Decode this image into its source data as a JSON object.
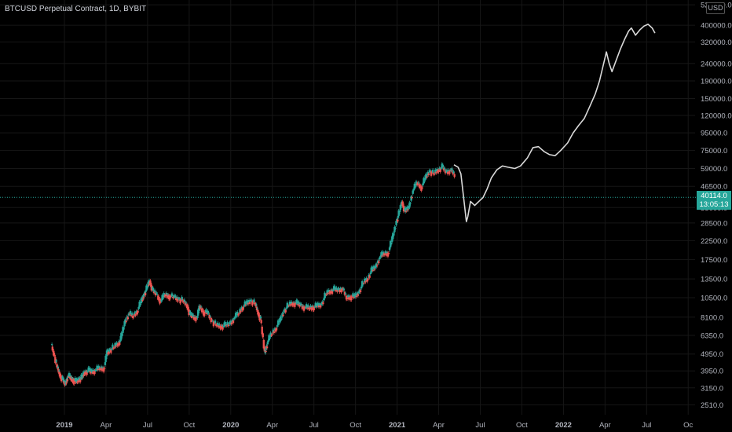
{
  "title": "BTCUSD Perpetual Contract, 1D, BYBIT",
  "currency_badge": "USD",
  "last_price": "40114.0",
  "countdown": "13:05:13",
  "colors": {
    "up": "#26a69a",
    "down": "#ef5350",
    "projection": "#d9d9d9",
    "badge": "#26a69a",
    "axis_text": "#b2b5be"
  },
  "chart_data": {
    "type": "line",
    "yscale": "log",
    "title": "BTCUSD Perpetual Contract, 1D, BYBIT",
    "ylim": [
      2200,
      560000
    ],
    "y_ticks": [
      "525000.0",
      "400000.0",
      "320000.0",
      "240000.0",
      "190000.0",
      "150000.0",
      "120000.0",
      "95000.0",
      "75000.0",
      "59000.0",
      "46500.0",
      "35000.0",
      "28500.0",
      "22500.0",
      "17500.0",
      "13500.0",
      "10500.0",
      "8100.0",
      "6350.0",
      "4950.0",
      "3950.0",
      "3150.0",
      "2510.0"
    ],
    "x_ticks": [
      "2019",
      "Apr",
      "Jul",
      "Oct",
      "2020",
      "Apr",
      "Jul",
      "Oct",
      "2021",
      "Apr",
      "Jul",
      "Oct",
      "2022",
      "Apr",
      "Jul",
      "Oc"
    ],
    "x_tick_months": [
      0,
      3,
      6,
      9,
      12,
      15,
      18,
      21,
      24,
      27,
      30,
      33,
      36,
      39,
      42,
      45
    ],
    "x_start_month": -1.2,
    "series": [
      {
        "style": "candles",
        "points": [
          [
            -0.9,
            5600
          ],
          [
            -0.7,
            4900
          ],
          [
            -0.5,
            4200
          ],
          [
            -0.3,
            3800
          ],
          [
            -0.1,
            3500
          ],
          [
            0.1,
            3300
          ],
          [
            0.3,
            3700
          ],
          [
            0.5,
            3600
          ],
          [
            0.7,
            3500
          ],
          [
            0.9,
            3400
          ],
          [
            1.1,
            3550
          ],
          [
            1.3,
            3600
          ],
          [
            1.5,
            3900
          ],
          [
            1.8,
            3950
          ],
          [
            2.0,
            3900
          ],
          [
            2.3,
            4000
          ],
          [
            2.6,
            4100
          ],
          [
            2.9,
            4100
          ],
          [
            3.1,
            5000
          ],
          [
            3.3,
            5200
          ],
          [
            3.6,
            5400
          ],
          [
            3.9,
            5700
          ],
          [
            4.1,
            6000
          ],
          [
            4.4,
            7500
          ],
          [
            4.7,
            8500
          ],
          [
            5.0,
            8200
          ],
          [
            5.3,
            8800
          ],
          [
            5.6,
            10000
          ],
          [
            5.8,
            11000
          ],
          [
            6.0,
            12000
          ],
          [
            6.2,
            13200
          ],
          [
            6.4,
            11500
          ],
          [
            6.7,
            11000
          ],
          [
            7.0,
            10000
          ],
          [
            7.3,
            11000
          ],
          [
            7.6,
            10800
          ],
          [
            8.0,
            10500
          ],
          [
            8.3,
            10300
          ],
          [
            8.6,
            10100
          ],
          [
            8.9,
            9500
          ],
          [
            9.1,
            8300
          ],
          [
            9.3,
            8200
          ],
          [
            9.6,
            8000
          ],
          [
            9.8,
            9400
          ],
          [
            10.1,
            8700
          ],
          [
            10.4,
            8500
          ],
          [
            10.7,
            7700
          ],
          [
            11.0,
            7300
          ],
          [
            11.3,
            7200
          ],
          [
            11.6,
            7200
          ],
          [
            12.0,
            7400
          ],
          [
            12.3,
            8000
          ],
          [
            12.6,
            8500
          ],
          [
            12.9,
            9300
          ],
          [
            13.2,
            9700
          ],
          [
            13.5,
            10100
          ],
          [
            13.8,
            9700
          ],
          [
            14.0,
            8700
          ],
          [
            14.2,
            7800
          ],
          [
            14.5,
            5000
          ],
          [
            14.7,
            5800
          ],
          [
            15.0,
            6500
          ],
          [
            15.3,
            7000
          ],
          [
            15.6,
            7700
          ],
          [
            15.9,
            8800
          ],
          [
            16.2,
            9500
          ],
          [
            16.5,
            9800
          ],
          [
            16.8,
            9700
          ],
          [
            17.1,
            9500
          ],
          [
            17.4,
            9200
          ],
          [
            17.7,
            9200
          ],
          [
            18.0,
            9300
          ],
          [
            18.3,
            9400
          ],
          [
            18.6,
            9600
          ],
          [
            18.9,
            11000
          ],
          [
            19.2,
            11500
          ],
          [
            19.5,
            11700
          ],
          [
            19.8,
            11600
          ],
          [
            20.1,
            11900
          ],
          [
            20.4,
            10500
          ],
          [
            20.7,
            10700
          ],
          [
            21.0,
            10600
          ],
          [
            21.3,
            11300
          ],
          [
            21.6,
            12800
          ],
          [
            21.9,
            13500
          ],
          [
            22.2,
            15000
          ],
          [
            22.5,
            15800
          ],
          [
            22.8,
            18000
          ],
          [
            23.1,
            19000
          ],
          [
            23.4,
            19100
          ],
          [
            23.7,
            23000
          ],
          [
            24.0,
            29000
          ],
          [
            24.2,
            33000
          ],
          [
            24.4,
            38000
          ],
          [
            24.6,
            33000
          ],
          [
            24.9,
            35000
          ],
          [
            25.2,
            44000
          ],
          [
            25.5,
            49000
          ],
          [
            25.8,
            46000
          ],
          [
            26.1,
            52000
          ],
          [
            26.4,
            57000
          ],
          [
            26.7,
            55000
          ],
          [
            27.0,
            58000
          ],
          [
            27.3,
            60000
          ],
          [
            27.6,
            56000
          ],
          [
            27.9,
            58000
          ],
          [
            28.2,
            54000
          ]
        ]
      },
      {
        "style": "projection",
        "points": [
          [
            28.1,
            62000
          ],
          [
            28.4,
            60000
          ],
          [
            28.6,
            55000
          ],
          [
            28.8,
            40000
          ],
          [
            29.0,
            29000
          ],
          [
            29.1,
            31000
          ],
          [
            29.3,
            38000
          ],
          [
            29.6,
            36000
          ],
          [
            29.9,
            38000
          ],
          [
            30.2,
            40000
          ],
          [
            30.5,
            45000
          ],
          [
            30.8,
            52000
          ],
          [
            31.2,
            58000
          ],
          [
            31.6,
            61000
          ],
          [
            32.0,
            60000
          ],
          [
            32.5,
            59000
          ],
          [
            32.9,
            61000
          ],
          [
            33.4,
            68000
          ],
          [
            33.8,
            78000
          ],
          [
            34.2,
            79000
          ],
          [
            34.6,
            74000
          ],
          [
            35.0,
            71000
          ],
          [
            35.4,
            70000
          ],
          [
            35.8,
            75000
          ],
          [
            36.3,
            83000
          ],
          [
            36.7,
            95000
          ],
          [
            37.1,
            105000
          ],
          [
            37.5,
            115000
          ],
          [
            37.9,
            135000
          ],
          [
            38.3,
            160000
          ],
          [
            38.6,
            190000
          ],
          [
            38.9,
            240000
          ],
          [
            39.1,
            280000
          ],
          [
            39.3,
            240000
          ],
          [
            39.5,
            215000
          ],
          [
            39.8,
            250000
          ],
          [
            40.1,
            290000
          ],
          [
            40.4,
            330000
          ],
          [
            40.7,
            370000
          ],
          [
            40.9,
            385000
          ],
          [
            41.2,
            350000
          ],
          [
            41.5,
            375000
          ],
          [
            41.8,
            395000
          ],
          [
            42.1,
            405000
          ],
          [
            42.4,
            385000
          ],
          [
            42.6,
            360000
          ]
        ]
      }
    ]
  }
}
